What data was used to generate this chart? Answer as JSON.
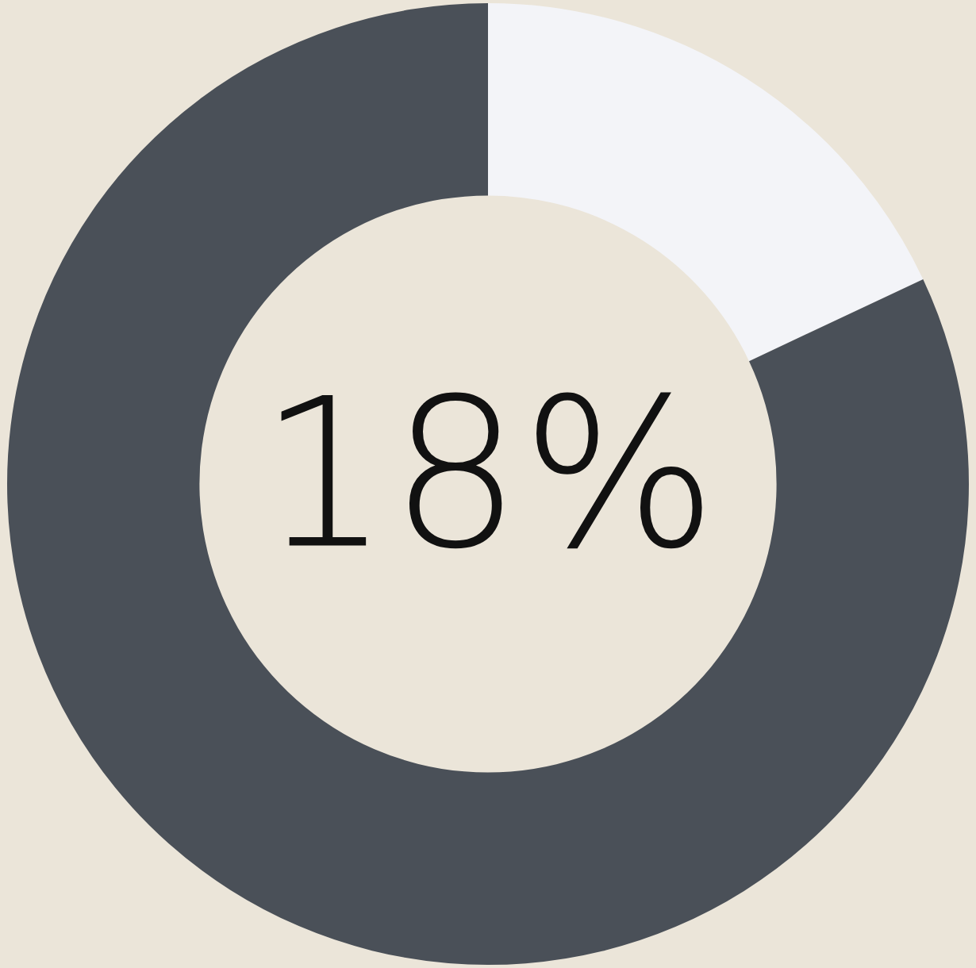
{
  "chart_data": {
    "type": "donut",
    "categories": [
      null,
      null
    ],
    "values": [
      18,
      82
    ],
    "colors": [
      "#f3f4f8",
      "#4a5058"
    ],
    "value_labels": [
      "18%",
      null
    ],
    "legend": false
  }
}
